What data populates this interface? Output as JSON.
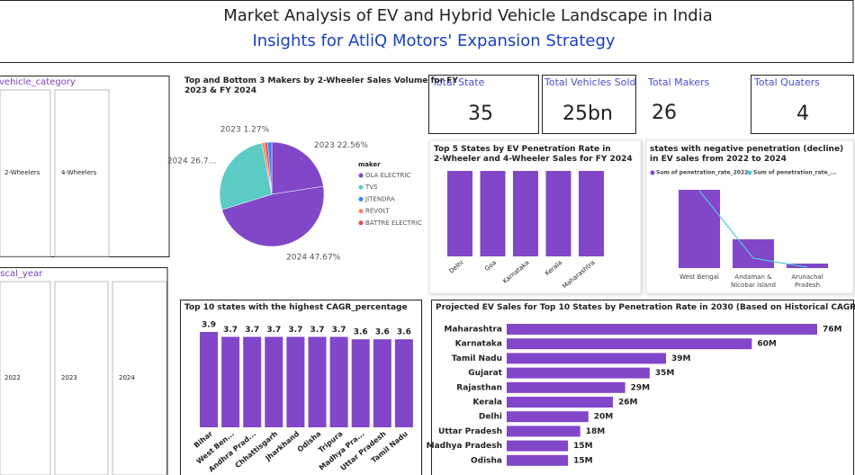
{
  "header": {
    "title": "Market Analysis of EV and Hybrid Vehicle Landscape in India",
    "subtitle": "Insights for AtliQ Motors' Expansion Strategy"
  },
  "slicers": [
    {
      "title": "vehicle_category",
      "items": [
        "2-Wheelers",
        "4-Wheelers"
      ]
    },
    {
      "title": "fiscal_year",
      "items": [
        "2022",
        "2023",
        "2024"
      ]
    }
  ],
  "cards": [
    {
      "label": "Total State",
      "value": "35"
    },
    {
      "label": "Total Vehicles Sold",
      "value": "25bn"
    },
    {
      "label": "Total Makers",
      "value": "26"
    },
    {
      "label": "Total Quaters",
      "value": "4"
    }
  ],
  "chart_data": [
    {
      "type": "pie",
      "title": "Top and Bottom 3 Makers by 2-Wheeler Sales Volume for FY 2023 & FY 2024",
      "values": [
        22.56,
        47.67,
        26.7,
        0.9,
        0.9,
        1.27
      ],
      "value_labels": [
        "2023 22.56%",
        "2024 47.67%",
        "2024 26.7...",
        null,
        null,
        "2023 1.27%"
      ],
      "colors": [
        "#8247c8",
        "#8247c8",
        "#5ccbc4",
        "#f0866b",
        "#e84a4a",
        "#3b82f6"
      ],
      "legend_title": "maker",
      "legend": [
        {
          "name": "OLA ELECTRIC",
          "color": "#8247c8"
        },
        {
          "name": "TVS",
          "color": "#5ccbc4"
        },
        {
          "name": "JITENDRA",
          "color": "#3b82f6"
        },
        {
          "name": "REVOLT",
          "color": "#f0866b"
        },
        {
          "name": "BATTRE ELECTRIC",
          "color": "#e84a4a"
        }
      ]
    },
    {
      "type": "bar",
      "title": "Top 5 States by EV Penetration Rate in 2-Wheeler and 4-Wheeler Sales for FY 2024",
      "categories": [
        "Delhi",
        "Goa",
        "Karnataka",
        "Kerala",
        "Maharashtra"
      ],
      "values": [
        7.5,
        7.5,
        7.5,
        7.5,
        7.5
      ],
      "color": "#8247c8"
    },
    {
      "type": "combo",
      "title": "states with negative penetration (decline) in EV sales from 2022 to 2024",
      "categories": [
        "West Bengal",
        "Andaman & Nicobar Island",
        "Arunachal Pradesh"
      ],
      "series": [
        {
          "name": "Sum of penetration_rate_2022",
          "color": "#8247c8",
          "kind": "bar",
          "values": [
            0.87,
            0.32,
            0.05
          ]
        },
        {
          "name": "Sum of penetration_rate_...",
          "color": "#4fc9d6",
          "kind": "line",
          "values": [
            0.86,
            0.11,
            0.01
          ]
        }
      ]
    },
    {
      "type": "bar",
      "title": "Top 10 states with the highest CAGR_percentage",
      "categories": [
        "Bihar",
        "West Ben...",
        "Andhra Prad...",
        "Chhattisgarh",
        "Jharkhand",
        "Odisha",
        "Tripura",
        "Madhya Pra...",
        "Uttar Pradesh",
        "Tamil Nadu"
      ],
      "values": [
        3.9,
        3.7,
        3.7,
        3.7,
        3.7,
        3.7,
        3.7,
        3.6,
        3.6,
        3.6
      ],
      "color": "#8247c8",
      "data_labels": true
    },
    {
      "type": "hbar",
      "title": "Projected EV Sales for Top 10 States by Penetration Rate in 2030 (Based on Historical CAGR)",
      "categories": [
        "Maharashtra",
        "Karnataka",
        "Tamil Nadu",
        "Gujarat",
        "Rajasthan",
        "Kerala",
        "Delhi",
        "Uttar Pradesh",
        "Madhya Pradesh",
        "Odisha"
      ],
      "values": [
        76,
        60,
        39,
        35,
        29,
        26,
        20,
        18,
        15,
        15
      ],
      "value_labels": [
        "76M",
        "60M",
        "39M",
        "35M",
        "29M",
        "26M",
        "20M",
        "18M",
        "15M",
        "15M"
      ],
      "color": "#8247c8"
    }
  ]
}
